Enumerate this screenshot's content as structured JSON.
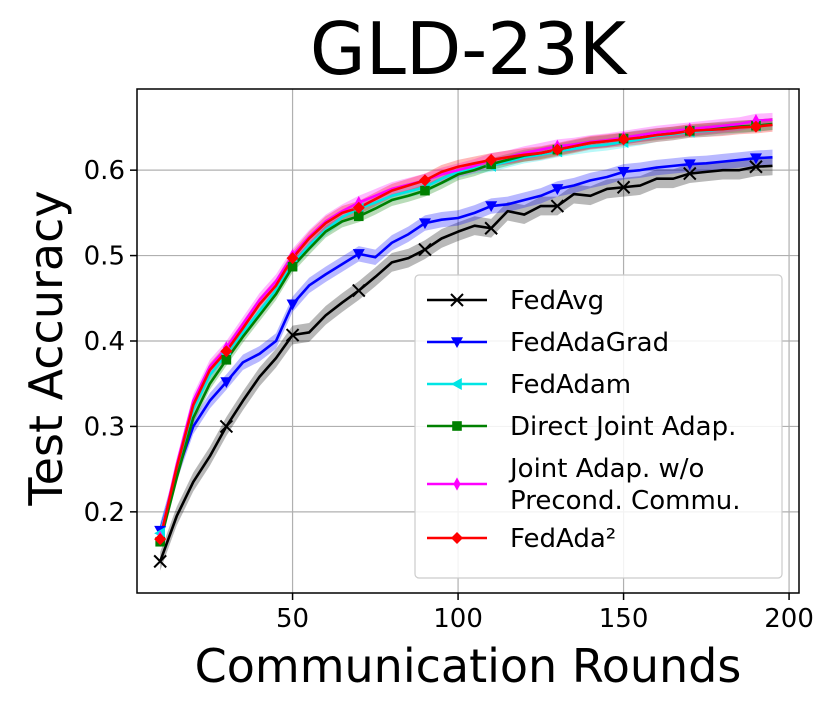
{
  "chart_data": {
    "type": "line",
    "title": "GLD-23K",
    "xlabel": "Communication Rounds",
    "ylabel": "Test Accuracy",
    "xlim": [
      3,
      203
    ],
    "ylim": [
      0.105,
      0.695
    ],
    "xticks": [
      50,
      100,
      150,
      200
    ],
    "yticks": [
      0.2,
      0.3,
      0.4,
      0.5,
      0.6
    ],
    "xtick_labels": [
      "50",
      "100",
      "150",
      "200"
    ],
    "ytick_labels": [
      "0.2",
      "0.3",
      "0.4",
      "0.5",
      "0.6"
    ],
    "grid": true,
    "legend_position": "lower-right",
    "x": [
      10,
      15,
      20,
      25,
      30,
      35,
      40,
      45,
      50,
      55,
      60,
      65,
      70,
      75,
      80,
      85,
      90,
      95,
      100,
      105,
      110,
      115,
      120,
      125,
      130,
      135,
      140,
      145,
      150,
      155,
      160,
      165,
      170,
      175,
      180,
      185,
      190,
      195
    ],
    "series": [
      {
        "name": "FedAvg",
        "color": "#000000",
        "marker": "x",
        "band": 0.011,
        "values": [
          0.142,
          0.195,
          0.235,
          0.265,
          0.3,
          0.33,
          0.358,
          0.38,
          0.407,
          0.41,
          0.43,
          0.445,
          0.459,
          0.475,
          0.492,
          0.497,
          0.507,
          0.52,
          0.528,
          0.535,
          0.532,
          0.552,
          0.548,
          0.558,
          0.558,
          0.572,
          0.57,
          0.578,
          0.58,
          0.582,
          0.59,
          0.59,
          0.596,
          0.598,
          0.6,
          0.6,
          0.604,
          0.605
        ]
      },
      {
        "name": "FedAdaGrad",
        "color": "#0000ff",
        "marker": "v",
        "band": 0.009,
        "values": [
          0.178,
          0.245,
          0.3,
          0.33,
          0.352,
          0.375,
          0.385,
          0.4,
          0.443,
          0.465,
          0.478,
          0.49,
          0.502,
          0.498,
          0.515,
          0.525,
          0.538,
          0.542,
          0.544,
          0.55,
          0.558,
          0.56,
          0.565,
          0.57,
          0.578,
          0.582,
          0.588,
          0.592,
          0.598,
          0.6,
          0.603,
          0.605,
          0.607,
          0.608,
          0.61,
          0.612,
          0.614,
          0.615
        ]
      },
      {
        "name": "FedAdam",
        "color": "#00e5e5",
        "marker": "<",
        "band": 0.007,
        "values": [
          0.175,
          0.25,
          0.32,
          0.36,
          0.385,
          0.41,
          0.435,
          0.46,
          0.49,
          0.512,
          0.53,
          0.545,
          0.555,
          0.562,
          0.57,
          0.575,
          0.58,
          0.59,
          0.598,
          0.603,
          0.605,
          0.61,
          0.615,
          0.618,
          0.622,
          0.625,
          0.628,
          0.63,
          0.633,
          0.636,
          0.64,
          0.642,
          0.645,
          0.646,
          0.648,
          0.65,
          0.652,
          0.654
        ]
      },
      {
        "name": "Direct Joint Adap.",
        "color": "#008000",
        "marker": "s",
        "band": 0.007,
        "values": [
          0.165,
          0.24,
          0.31,
          0.35,
          0.378,
          0.405,
          0.43,
          0.455,
          0.487,
          0.508,
          0.528,
          0.54,
          0.546,
          0.555,
          0.565,
          0.57,
          0.576,
          0.585,
          0.595,
          0.6,
          0.607,
          0.612,
          0.617,
          0.62,
          0.624,
          0.628,
          0.632,
          0.634,
          0.637,
          0.64,
          0.642,
          0.644,
          0.646,
          0.648,
          0.65,
          0.651,
          0.652,
          0.654
        ]
      },
      {
        "name": "Joint Adap. w/o\nPrecond. Commu.",
        "color": "#ff00ff",
        "marker": "d",
        "band": 0.008,
        "values": [
          0.17,
          0.255,
          0.33,
          0.37,
          0.392,
          0.42,
          0.448,
          0.47,
          0.5,
          0.522,
          0.54,
          0.552,
          0.562,
          0.57,
          0.578,
          0.583,
          0.588,
          0.595,
          0.6,
          0.605,
          0.612,
          0.615,
          0.62,
          0.624,
          0.628,
          0.63,
          0.633,
          0.635,
          0.638,
          0.641,
          0.644,
          0.646,
          0.648,
          0.65,
          0.652,
          0.654,
          0.658,
          0.659
        ]
      },
      {
        "name": "FedAda²",
        "color": "#ff0000",
        "marker": "D",
        "band": 0.008,
        "values": [
          0.168,
          0.252,
          0.325,
          0.366,
          0.388,
          0.415,
          0.443,
          0.465,
          0.497,
          0.52,
          0.538,
          0.55,
          0.556,
          0.566,
          0.576,
          0.582,
          0.588,
          0.598,
          0.604,
          0.608,
          0.612,
          0.615,
          0.618,
          0.62,
          0.624,
          0.628,
          0.632,
          0.634,
          0.636,
          0.638,
          0.641,
          0.643,
          0.646,
          0.647,
          0.648,
          0.65,
          0.651,
          0.653
        ]
      }
    ],
    "marker_every_x": [
      10,
      30,
      50,
      70,
      90,
      110,
      130,
      150,
      170,
      190
    ]
  }
}
